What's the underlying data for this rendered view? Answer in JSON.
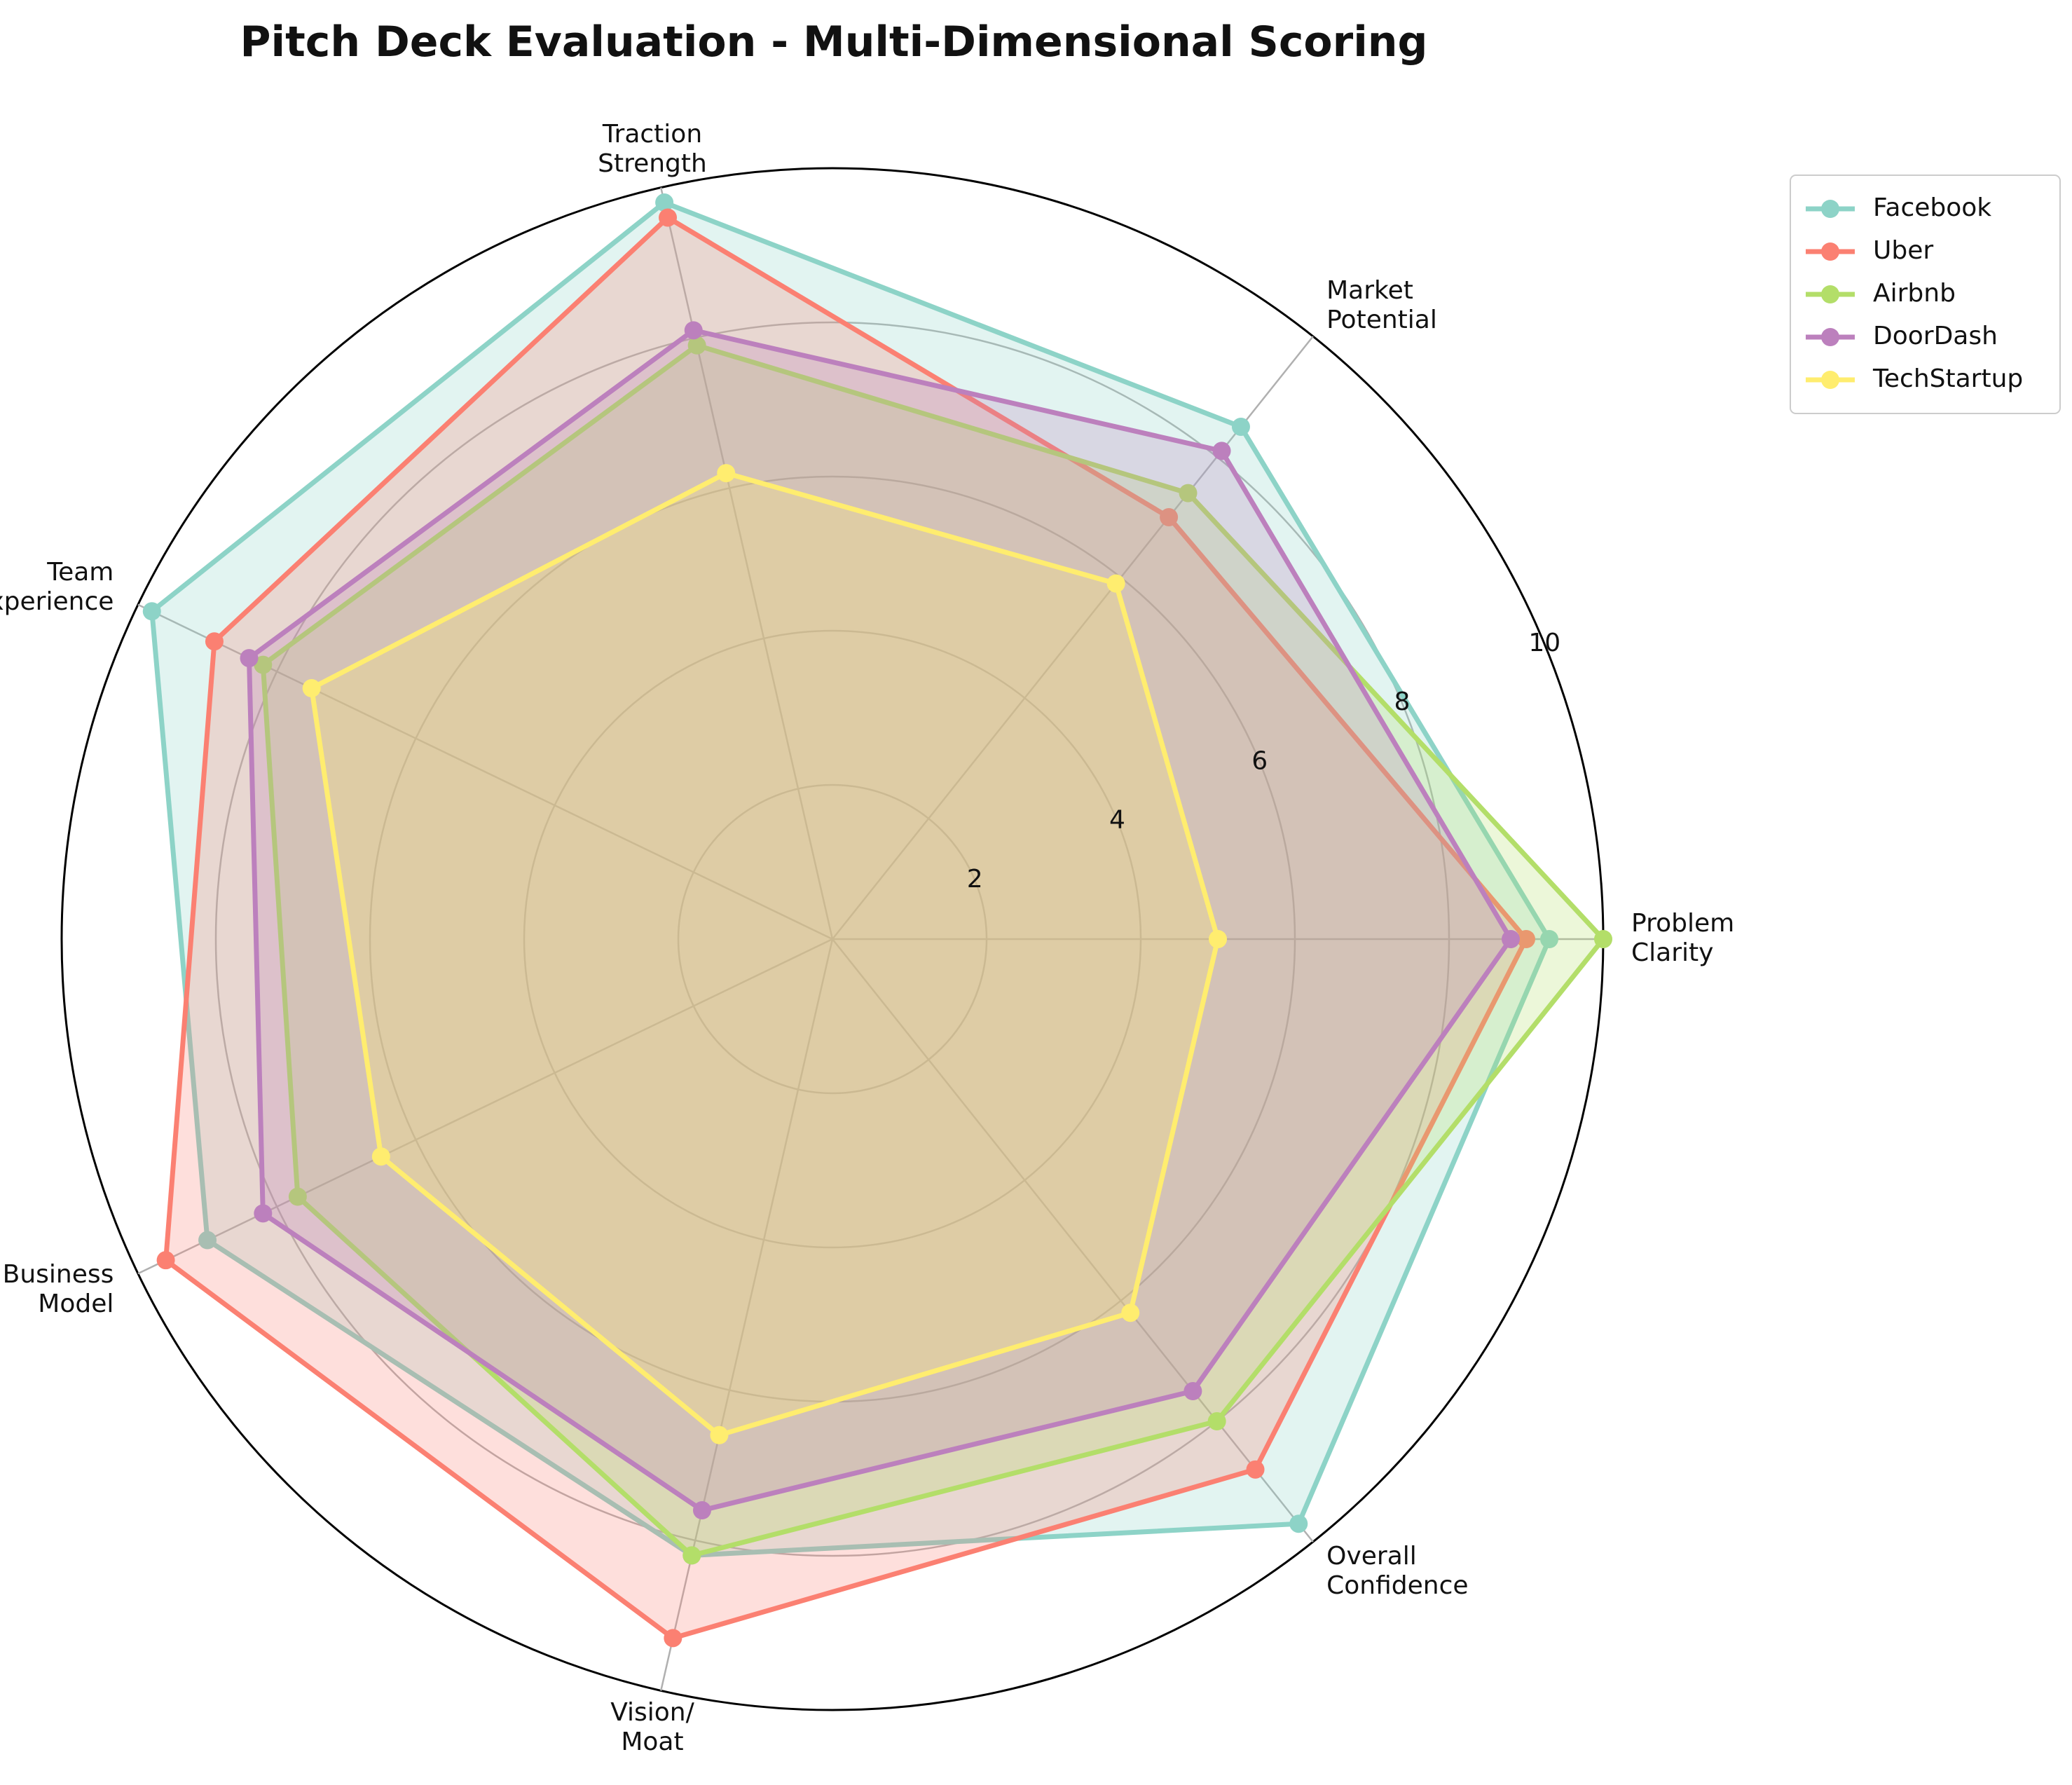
{
  "chart_data": {
    "type": "radar",
    "title": "Pitch Deck Evaluation - Multi-Dimensional Scoring",
    "axes": [
      [
        "Problem",
        "Clarity"
      ],
      [
        "Market",
        "Potential"
      ],
      [
        "Traction",
        "Strength"
      ],
      [
        "Team",
        "Experience"
      ],
      [
        "Business",
        "Model"
      ],
      [
        "Vision/",
        "Moat"
      ],
      [
        "Overall",
        "Confidence"
      ]
    ],
    "rlim": [
      0,
      10
    ],
    "rticks": [
      2,
      4,
      6,
      8,
      10
    ],
    "grid": true,
    "legend_position": "upper-right (outside)",
    "series": [
      {
        "name": "Facebook",
        "color": "#8dd3c7",
        "values": [
          9.3,
          8.5,
          9.8,
          9.8,
          9.0,
          8.2,
          9.7
        ]
      },
      {
        "name": "Uber",
        "color": "#fb8072",
        "values": [
          9.0,
          7.0,
          9.6,
          8.9,
          9.6,
          9.3,
          8.8
        ]
      },
      {
        "name": "Airbnb",
        "color": "#b3de69",
        "values": [
          10.0,
          7.4,
          7.9,
          8.2,
          7.7,
          8.2,
          8.0
        ]
      },
      {
        "name": "DoorDash",
        "color": "#bc80bd",
        "values": [
          8.8,
          8.1,
          8.1,
          8.4,
          8.2,
          7.6,
          7.5
        ]
      },
      {
        "name": "TechStartup",
        "color": "#ffed6f",
        "values": [
          5.0,
          5.9,
          6.2,
          7.5,
          6.5,
          6.6,
          6.2
        ]
      }
    ]
  }
}
